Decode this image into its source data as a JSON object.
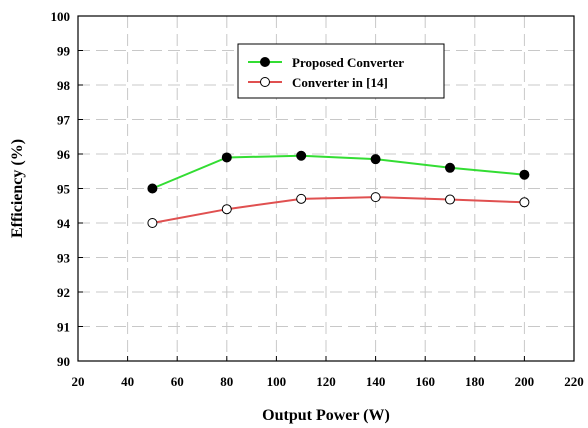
{
  "chart_data": {
    "type": "line",
    "title": "",
    "xlabel": "Output Power (W)",
    "ylabel": "Efficiency (%)",
    "xlim": [
      20,
      220
    ],
    "ylim": [
      90,
      100
    ],
    "xticks": [
      20,
      40,
      60,
      80,
      100,
      120,
      140,
      160,
      180,
      200,
      220
    ],
    "yticks": [
      90,
      91,
      92,
      93,
      94,
      95,
      96,
      97,
      98,
      99,
      100
    ],
    "grid": true,
    "legend_position": "top-center",
    "series": [
      {
        "name": "Proposed Converter",
        "color": "#33dd33",
        "marker": "filled-circle",
        "x": [
          50,
          80,
          110,
          140,
          170,
          200
        ],
        "y": [
          95.0,
          95.9,
          95.95,
          95.85,
          95.6,
          95.4
        ]
      },
      {
        "name": "Converter in [14]",
        "color": "#e05050",
        "marker": "open-circle",
        "x": [
          50,
          80,
          110,
          140,
          170,
          200
        ],
        "y": [
          94.0,
          94.4,
          94.7,
          94.75,
          94.68,
          94.6
        ]
      }
    ]
  }
}
